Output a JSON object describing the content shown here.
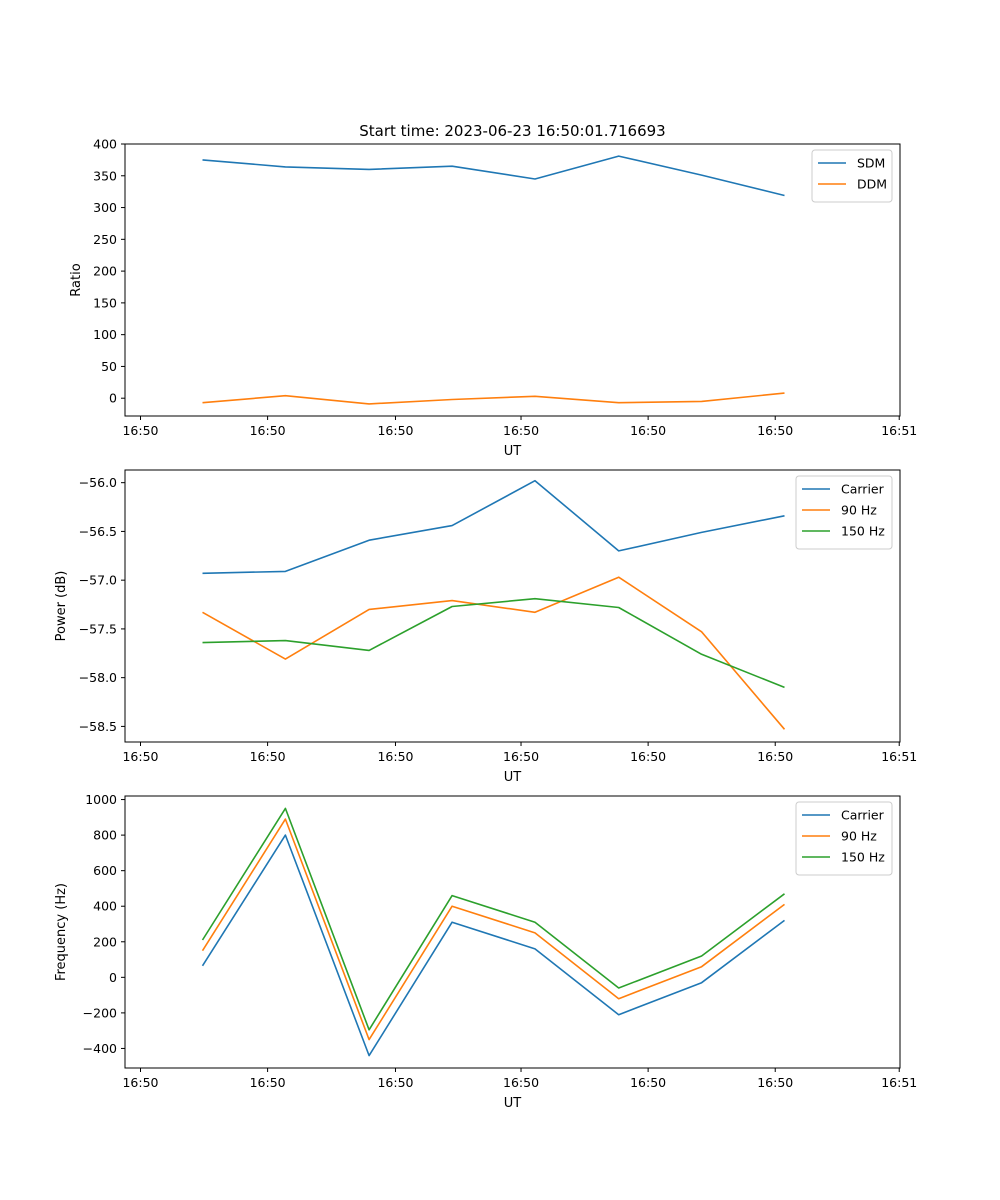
{
  "figure_title": "Start time: 2023-06-23 16:50:01.716693",
  "chart_data": [
    {
      "type": "line",
      "ylabel": "Ratio",
      "xlabel": "UT",
      "x_tick_labels": [
        "16:50",
        "16:50",
        "16:50",
        "16:50",
        "16:50",
        "16:50",
        "16:51"
      ],
      "y_ticks": [
        0,
        50,
        100,
        150,
        200,
        250,
        300,
        350,
        400
      ],
      "ylim": [
        -28,
        400
      ],
      "legend_position": "upper-right",
      "series": [
        {
          "name": "SDM",
          "color": "#1f77b4",
          "values": [
            375,
            364,
            360,
            365,
            345,
            381,
            351,
            319
          ]
        },
        {
          "name": "DDM",
          "color": "#ff7f0e",
          "values": [
            -7,
            4,
            -9,
            -2,
            3,
            -7,
            -5,
            8
          ]
        }
      ]
    },
    {
      "type": "line",
      "ylabel": "Power (dB)",
      "xlabel": "UT",
      "x_tick_labels": [
        "16:50",
        "16:50",
        "16:50",
        "16:50",
        "16:50",
        "16:50",
        "16:51"
      ],
      "y_ticks": [
        -58.5,
        -58.0,
        -57.5,
        -57.0,
        -56.5,
        -56.0
      ],
      "y_tick_labels": [
        "−58.5",
        "−58.0",
        "−57.5",
        "−57.0",
        "−56.5",
        "−56.0"
      ],
      "ylim": [
        -58.66,
        -55.87
      ],
      "legend_position": "upper-right",
      "series": [
        {
          "name": "Carrier",
          "color": "#1f77b4",
          "values": [
            -56.93,
            -56.91,
            -56.59,
            -56.44,
            -55.98,
            -56.7,
            -56.51,
            -56.34
          ]
        },
        {
          "name": "90 Hz",
          "color": "#ff7f0e",
          "values": [
            -57.33,
            -57.81,
            -57.3,
            -57.21,
            -57.33,
            -56.97,
            -57.53,
            -58.53
          ]
        },
        {
          "name": "150 Hz",
          "color": "#2ca02c",
          "values": [
            -57.64,
            -57.62,
            -57.72,
            -57.27,
            -57.19,
            -57.28,
            -57.76,
            -58.1
          ]
        }
      ]
    },
    {
      "type": "line",
      "ylabel": "Frequency (Hz)",
      "xlabel": "UT",
      "x_tick_labels": [
        "16:50",
        "16:50",
        "16:50",
        "16:50",
        "16:50",
        "16:50",
        "16:51"
      ],
      "y_ticks": [
        -400,
        -200,
        0,
        200,
        400,
        600,
        800,
        1000
      ],
      "y_tick_labels": [
        "−400",
        "−200",
        "0",
        "200",
        "400",
        "600",
        "800",
        "1000"
      ],
      "ylim": [
        -510,
        1020
      ],
      "legend_position": "upper-right",
      "series": [
        {
          "name": "Carrier",
          "color": "#1f77b4",
          "values": [
            65,
            800,
            -440,
            310,
            160,
            -210,
            -30,
            320
          ]
        },
        {
          "name": "90 Hz",
          "color": "#ff7f0e",
          "values": [
            150,
            890,
            -350,
            400,
            250,
            -120,
            60,
            410
          ]
        },
        {
          "name": "150 Hz",
          "color": "#2ca02c",
          "values": [
            210,
            950,
            -295,
            460,
            310,
            -60,
            120,
            470
          ]
        }
      ]
    }
  ]
}
